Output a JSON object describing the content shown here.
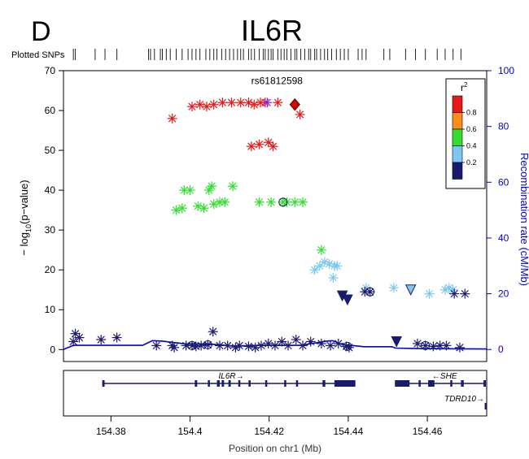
{
  "panel_label": "D",
  "title": "IL6R",
  "plotted_snps_label": "Plotted SNPs",
  "colors": {
    "red": "#e41a1c",
    "orange": "#ff8c1a",
    "green": "#33dd33",
    "lightblue": "#7ec8f0",
    "navy": "#1a1a6e",
    "recomb": "#0000cc",
    "lead": "#cc0000",
    "lead_purple": "#8a2be2"
  },
  "chart_data": {
    "type": "scatter",
    "title": "IL6R",
    "xlabel": "Position on chr1 (Mb)",
    "ylabel": "− log10(p−value)",
    "ylabel_main": "− log",
    "ylabel_sub": "10",
    "ylabel_tail": "(p−value)",
    "y2label": "Recombination rate (cM/Mb)",
    "xlim": [
      154.368,
      154.475
    ],
    "ylim": [
      -3,
      70
    ],
    "y2lim": [
      -4.3,
      100
    ],
    "x_ticks": [
      154.38,
      154.4,
      154.42,
      154.44,
      154.46
    ],
    "x_tick_labels": [
      "154.38",
      "154.4",
      "154.42",
      "154.44",
      "154.46"
    ],
    "y_ticks": [
      0,
      10,
      20,
      30,
      40,
      50,
      60,
      70
    ],
    "y_tick_labels": [
      "0",
      "10",
      "20",
      "30",
      "40",
      "50",
      "60",
      "70"
    ],
    "y2_ticks": [
      0,
      20,
      40,
      60,
      80,
      100
    ],
    "y2_tick_labels": [
      "0",
      "20",
      "40",
      "60",
      "80",
      "100"
    ],
    "lead_snp": {
      "label": "rs61812598",
      "x": 154.4265,
      "y": 61.5
    },
    "legend": {
      "title": "r",
      "title_sup": "2",
      "placement": "top-right",
      "entries": [
        {
          "label": "0.8",
          "color": "#e41a1c"
        },
        {
          "label": "0.6",
          "color": "#ff8c1a"
        },
        {
          "label": "0.4",
          "color": "#33dd33"
        },
        {
          "label": "0.2",
          "color": "#7ec8f0"
        },
        {
          "label": "",
          "color": "#1a1a6e"
        }
      ]
    },
    "rug_positions": [
      154.3705,
      154.371,
      154.376,
      154.3785,
      154.3815,
      154.3895,
      154.39,
      154.391,
      154.3925,
      154.393,
      154.394,
      154.395,
      154.3965,
      154.398,
      154.3995,
      154.4005,
      154.4015,
      154.4025,
      154.404,
      154.405,
      154.406,
      154.4068,
      154.408,
      154.409,
      154.41,
      154.411,
      154.412,
      154.4128,
      154.4135,
      154.4148,
      154.4155,
      154.4163,
      154.4175,
      154.4185,
      154.419,
      154.4198,
      154.4205,
      154.421,
      154.4222,
      154.423,
      154.4238,
      154.4245,
      154.4255,
      154.4265,
      154.427,
      154.428,
      154.429,
      154.43,
      154.4305,
      154.4315,
      154.432,
      154.433,
      154.434,
      154.4348,
      154.4358,
      154.437,
      154.438,
      154.439,
      154.44,
      154.4425,
      154.4435,
      154.4445,
      154.449,
      154.4505,
      154.4545,
      154.457,
      154.4595,
      154.4625,
      154.4645,
      154.4665,
      154.4685
    ],
    "series": [
      {
        "name": "red",
        "color": "#e41a1c",
        "points": [
          [
            154.3955,
            58
          ],
          [
            154.4005,
            61
          ],
          [
            154.4025,
            61.5
          ],
          [
            154.4042,
            61
          ],
          [
            154.406,
            61.5
          ],
          [
            154.4082,
            62
          ],
          [
            154.4105,
            62
          ],
          [
            154.4128,
            62
          ],
          [
            154.4148,
            62
          ],
          [
            154.4162,
            61.5
          ],
          [
            154.4178,
            62
          ],
          [
            154.419,
            62
          ],
          [
            154.4222,
            62
          ],
          [
            154.4278,
            59
          ],
          [
            154.4155,
            51
          ],
          [
            154.4175,
            51.5
          ],
          [
            154.4198,
            52
          ],
          [
            154.421,
            51
          ]
        ]
      },
      {
        "name": "green",
        "color": "#33dd33",
        "points": [
          [
            154.3965,
            35
          ],
          [
            154.398,
            35.5
          ],
          [
            154.3985,
            40
          ],
          [
            154.4,
            40
          ],
          [
            154.402,
            36
          ],
          [
            154.4035,
            35.5
          ],
          [
            154.4048,
            40
          ],
          [
            154.4055,
            41
          ],
          [
            154.406,
            36.5
          ],
          [
            154.4075,
            37
          ],
          [
            154.4088,
            37
          ],
          [
            154.4108,
            41
          ],
          [
            154.4175,
            37
          ],
          [
            154.4205,
            37
          ],
          [
            154.4235,
            37
          ],
          [
            154.4245,
            37
          ],
          [
            154.4265,
            37
          ],
          [
            154.4285,
            37
          ],
          [
            154.4332,
            25
          ]
        ]
      },
      {
        "name": "lightblue",
        "color": "#7ec8f0",
        "points": [
          [
            154.4315,
            20
          ],
          [
            154.4328,
            21
          ],
          [
            154.434,
            22
          ],
          [
            154.4352,
            21.5
          ],
          [
            154.4365,
            21
          ],
          [
            154.4372,
            21
          ],
          [
            154.4362,
            18
          ],
          [
            154.4445,
            15.5
          ],
          [
            154.4515,
            15.5
          ],
          [
            154.4605,
            14
          ],
          [
            154.4645,
            15
          ],
          [
            154.4655,
            15.5
          ],
          [
            154.4665,
            15
          ]
        ]
      },
      {
        "name": "navy",
        "color": "#1a1a6e",
        "points": [
          [
            154.3705,
            2
          ],
          [
            154.371,
            4
          ],
          [
            154.372,
            3
          ],
          [
            154.3775,
            2.5
          ],
          [
            154.3815,
            3
          ],
          [
            154.3915,
            1
          ],
          [
            154.3955,
            1
          ],
          [
            154.396,
            0.5
          ],
          [
            154.399,
            1
          ],
          [
            154.4005,
            1
          ],
          [
            154.4015,
            0.8
          ],
          [
            154.4028,
            1
          ],
          [
            154.4045,
            1.2
          ],
          [
            154.4058,
            4.5
          ],
          [
            154.4075,
            1
          ],
          [
            154.4095,
            1
          ],
          [
            154.4115,
            0.5
          ],
          [
            154.4125,
            1
          ],
          [
            154.4148,
            0.8
          ],
          [
            154.4165,
            0.5
          ],
          [
            154.418,
            1
          ],
          [
            154.4198,
            1.5
          ],
          [
            154.4215,
            1
          ],
          [
            154.4232,
            2
          ],
          [
            154.4248,
            1
          ],
          [
            154.4268,
            2.5
          ],
          [
            154.4285,
            1
          ],
          [
            154.4305,
            2
          ],
          [
            154.4332,
            1.5
          ],
          [
            154.4355,
            1
          ],
          [
            154.4375,
            1.5
          ],
          [
            154.4395,
            0.8
          ],
          [
            154.4402,
            0.5
          ],
          [
            154.4442,
            14.5
          ],
          [
            154.4455,
            14.5
          ],
          [
            154.4575,
            1.5
          ],
          [
            154.4595,
            1
          ],
          [
            154.4615,
            0.8
          ],
          [
            154.4632,
            1
          ],
          [
            154.4648,
            1
          ],
          [
            154.4668,
            14
          ],
          [
            154.4682,
            0.5
          ],
          [
            154.4695,
            14
          ]
        ]
      },
      {
        "name": "navy-triangles",
        "color": "#1a1a6e",
        "shape": "triangle-down",
        "points": [
          [
            154.4385,
            13.5
          ],
          [
            154.4398,
            12.5
          ],
          [
            154.4522,
            2
          ]
        ]
      },
      {
        "name": "lightblue-triangle",
        "color": "#7ec8f0",
        "shape": "triangle-down",
        "points": [
          [
            154.4558,
            15
          ]
        ]
      },
      {
        "name": "lead",
        "color": "#cc0000",
        "shape": "diamond",
        "points": [
          [
            154.4265,
            61.5
          ]
        ]
      },
      {
        "name": "purple",
        "color": "#8a2be2",
        "points": [
          [
            154.4195,
            62
          ]
        ]
      }
    ],
    "recombination": {
      "name": "recombination rate",
      "color": "#0000cc",
      "points": [
        [
          154.368,
          0
        ],
        [
          154.3705,
          1.5
        ],
        [
          154.3755,
          1.5
        ],
        [
          154.383,
          1.5
        ],
        [
          154.388,
          1.5
        ],
        [
          154.3905,
          3.2
        ],
        [
          154.393,
          3
        ],
        [
          154.396,
          2.5
        ],
        [
          154.399,
          2
        ],
        [
          154.405,
          2
        ],
        [
          154.411,
          1.2
        ],
        [
          154.418,
          1.5
        ],
        [
          154.428,
          1.5
        ],
        [
          154.4345,
          3
        ],
        [
          154.436,
          3.2
        ],
        [
          154.4385,
          1.8
        ],
        [
          154.444,
          1
        ],
        [
          154.451,
          1
        ],
        [
          154.452,
          0.5
        ],
        [
          154.46,
          0.3
        ],
        [
          154.475,
          0.2
        ]
      ]
    },
    "genes": [
      {
        "name": "IL6R",
        "strand": "+",
        "label": "IL6R→",
        "start": 154.3778,
        "end": 154.4418,
        "row": 0,
        "exons": [
          [
            154.3778,
            154.3784
          ],
          [
            154.4012,
            154.4018
          ],
          [
            154.4045,
            154.405
          ],
          [
            154.4068,
            154.4075
          ],
          [
            154.408,
            154.4086
          ],
          [
            154.4097,
            154.4103
          ],
          [
            154.4122,
            154.4126
          ],
          [
            154.4148,
            154.4152
          ],
          [
            154.419,
            154.4195
          ],
          [
            154.4238,
            154.4242
          ],
          [
            154.4268,
            154.4272
          ],
          [
            154.4335,
            154.4342
          ],
          [
            154.4365,
            154.4418
          ]
        ]
      },
      {
        "name": "SHE",
        "strand": "-",
        "label": "←SHE",
        "start": 154.4518,
        "end": 154.4748,
        "row": 0,
        "exons": [
          [
            154.4518,
            154.4555
          ],
          [
            154.4578,
            154.4582
          ],
          [
            154.4602,
            154.4618
          ],
          [
            154.4658,
            154.4662
          ],
          [
            154.4685,
            154.4692
          ],
          [
            154.4742,
            154.4748
          ]
        ]
      },
      {
        "name": "TDRD10",
        "strand": "+",
        "label": "TDRD10→",
        "start": 154.4745,
        "end": 154.4752,
        "row": 1,
        "exons": [
          [
            154.4745,
            154.4752
          ]
        ]
      }
    ]
  }
}
